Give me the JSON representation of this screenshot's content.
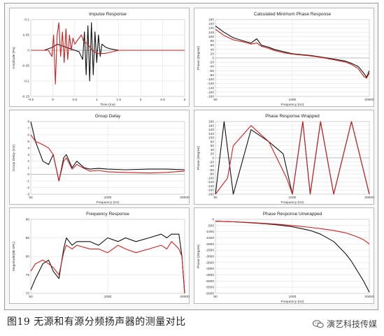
{
  "caption": "图19  无源和有源分频扬声器的测量对比",
  "brand": "演艺科技传媒",
  "colors": {
    "black_series": "#111111",
    "red_series": "#cc2222",
    "grid": "#d4d4d4",
    "frame": "#9a9a9a"
  },
  "chart_data": [
    {
      "type": "line",
      "title": "Impulse Response",
      "xlabel": "Time (ms)",
      "ylabel": "Amplitude (Pa)",
      "xscale": "linear",
      "xlim": [
        -0.5,
        3
      ],
      "ylim": [
        -0.15,
        0.1
      ],
      "xticks": [
        -0.5,
        0,
        0.5,
        1,
        1.5,
        2,
        2.5,
        3
      ],
      "xticklabels": [
        "-0.5",
        "0",
        "0.5",
        "1",
        "1.5",
        "2",
        "2.5",
        "3"
      ],
      "yticks": [
        -0.15,
        -0.1,
        -0.05,
        0,
        0.05,
        0.1
      ],
      "yticklabels": [
        "-0.15",
        "-0.1",
        "-0.05",
        "0",
        "0.05",
        "0.1"
      ],
      "grid": true,
      "series": [
        {
          "color": "#111111",
          "x": [
            -0.5,
            -0.2,
            0,
            0.1,
            0.2,
            0.3,
            0.4,
            0.5,
            0.6,
            0.68,
            0.72,
            0.76,
            0.8,
            0.84,
            0.88,
            0.92,
            0.96,
            1.0,
            1.04,
            1.08,
            1.12,
            1.2,
            1.3,
            1.5,
            1.8,
            2.2,
            3
          ],
          "y": [
            0,
            0,
            0.01,
            0.02,
            0.015,
            0.01,
            0.005,
            0,
            -0.005,
            -0.03,
            0.06,
            -0.08,
            0.08,
            -0.1,
            0.09,
            -0.08,
            0.06,
            -0.04,
            0.05,
            -0.02,
            0.02,
            0.01,
            0.005,
            0,
            0,
            0,
            0
          ]
        },
        {
          "color": "#cc2222",
          "x": [
            -0.5,
            -0.1,
            -0.02,
            0.02,
            0.06,
            0.1,
            0.14,
            0.18,
            0.22,
            0.26,
            0.3,
            0.34,
            0.38,
            0.42,
            0.46,
            0.5,
            0.55,
            0.6,
            0.65,
            0.7,
            0.8,
            0.9,
            1.0,
            1.2,
            1.5,
            2,
            3
          ],
          "y": [
            0,
            0,
            -0.02,
            0.05,
            -0.11,
            0.05,
            0.09,
            -0.02,
            0.06,
            -0.04,
            0.07,
            -0.03,
            0.05,
            0.0,
            0.04,
            0.02,
            0.03,
            0.04,
            0.05,
            0.03,
            0.02,
            0.0,
            -0.01,
            -0.01,
            0,
            0,
            0
          ]
        }
      ]
    },
    {
      "type": "line",
      "title": "Calculated Minimum Phase Response",
      "xlabel": "Frequency (Hz)",
      "ylabel": "Phase (Degree)",
      "xscale": "log",
      "xlim": [
        50,
        20000
      ],
      "ylim": [
        -180,
        180
      ],
      "xticks": [
        50,
        1000,
        20000
      ],
      "xticklabels": [
        "50",
        "1000",
        "20000"
      ],
      "yticks": [
        -180,
        -160,
        -140,
        -120,
        -100,
        -80,
        -60,
        -40,
        -20,
        0,
        20,
        40,
        60,
        80,
        100,
        120,
        140,
        160,
        180
      ],
      "yticklabels": [
        "-180",
        "-160",
        "-140",
        "-120",
        "-100",
        "-80",
        "-60",
        "-40",
        "-20",
        "0",
        "20",
        "40",
        "60",
        "80",
        "100",
        "120",
        "140",
        "160",
        "180"
      ],
      "grid": true,
      "series": [
        {
          "color": "#111111",
          "x": [
            50,
            70,
            100,
            150,
            200,
            250,
            300,
            400,
            500,
            700,
            1000,
            1500,
            2000,
            3000,
            5000,
            8000,
            10000,
            13000,
            16000,
            18000,
            20000
          ],
          "y": [
            150,
            120,
            95,
            80,
            70,
            90,
            60,
            50,
            40,
            30,
            20,
            15,
            12,
            5,
            -5,
            -15,
            -25,
            -40,
            -70,
            -90,
            -60
          ]
        },
        {
          "color": "#cc2222",
          "x": [
            50,
            70,
            100,
            150,
            200,
            250,
            300,
            400,
            500,
            700,
            1000,
            1500,
            2000,
            3000,
            5000,
            8000,
            10000,
            13000,
            16000,
            18000,
            20000
          ],
          "y": [
            135,
            105,
            85,
            75,
            65,
            70,
            55,
            45,
            35,
            25,
            18,
            13,
            10,
            3,
            -8,
            -20,
            -30,
            -50,
            -85,
            -95,
            -70
          ]
        }
      ]
    },
    {
      "type": "line",
      "title": "Group Delay",
      "xlabel": "Frequency (Hz)",
      "ylabel": "Group Delay (ms)",
      "xscale": "log",
      "xlim": [
        50,
        20000
      ],
      "ylim": [
        -3,
        8
      ],
      "xticks": [
        50,
        1000,
        20000
      ],
      "xticklabels": [
        "50",
        "1000",
        "20000"
      ],
      "yticks": [
        -3,
        -2,
        -1,
        0,
        1,
        2,
        3,
        4,
        5,
        6,
        7,
        8
      ],
      "yticklabels": [
        "-3",
        "-2",
        "-1",
        "0",
        "1",
        "2",
        "3",
        "4",
        "5",
        "6",
        "7",
        "8"
      ],
      "grid": true,
      "series": [
        {
          "color": "#111111",
          "x": [
            50,
            60,
            80,
            100,
            120,
            150,
            180,
            200,
            250,
            300,
            400,
            500,
            700,
            1000,
            2000,
            5000,
            10000,
            20000
          ],
          "y": [
            8,
            5,
            2,
            1.5,
            3,
            -1,
            2.5,
            3,
            1,
            2,
            1,
            0.8,
            0.9,
            0.8,
            0.7,
            0.8,
            0.8,
            0.7
          ]
        },
        {
          "color": "#cc2222",
          "x": [
            50,
            60,
            80,
            100,
            120,
            150,
            180,
            200,
            250,
            300,
            400,
            500,
            700,
            1000,
            2000,
            5000,
            10000,
            20000
          ],
          "y": [
            6,
            5,
            4.5,
            4,
            3,
            -1,
            2,
            2.5,
            0.8,
            1.5,
            0.9,
            0.5,
            0.6,
            0.4,
            0.3,
            0.2,
            0.3,
            0.5
          ]
        }
      ]
    },
    {
      "type": "line",
      "title": "Phase Response Wrapped",
      "xlabel": "Frequency (Hz)",
      "ylabel": "Phase (Degree)",
      "xscale": "log",
      "xlim": [
        50,
        20000
      ],
      "ylim": [
        -180,
        180
      ],
      "xticks": [
        50,
        1000,
        20000
      ],
      "xticklabels": [
        "50",
        "1000",
        "20000"
      ],
      "yticks": [
        -180,
        -160,
        -140,
        -120,
        -100,
        -80,
        -60,
        -40,
        -20,
        0,
        20,
        40,
        60,
        80,
        100,
        120,
        140,
        160,
        180
      ],
      "yticklabels": [
        "-180",
        "-160",
        "-140",
        "-120",
        "-100",
        "-80",
        "-60",
        "-40",
        "-20",
        "0",
        "20",
        "40",
        "60",
        "80",
        "100",
        "120",
        "140",
        "160",
        "180"
      ],
      "grid": true,
      "series": [
        {
          "color": "#111111",
          "wraps": "sawtooth",
          "x": [
            50,
            70,
            100,
            200,
            400,
            700,
            1000,
            1500,
            2000,
            3000,
            5000,
            10000,
            20000
          ],
          "y": [
            -180,
            180,
            -180,
            140,
            80,
            20,
            -180,
            180,
            -180,
            180,
            -180,
            180,
            -180
          ]
        },
        {
          "color": "#cc2222",
          "wraps": "sawtooth",
          "x": [
            50,
            80,
            100,
            200,
            400,
            800,
            1000,
            1500,
            2000,
            3000,
            5000,
            10000,
            20000
          ],
          "y": [
            -180,
            -100,
            60,
            160,
            80,
            -100,
            -180,
            180,
            -180,
            180,
            -180,
            180,
            -180
          ]
        }
      ]
    },
    {
      "type": "line",
      "title": "Frequency Response",
      "xlabel": "",
      "ylabel": "Magnitude(dB SPL)",
      "xscale": "log",
      "xlim": [
        50,
        20000
      ],
      "ylim": [
        70,
        90
      ],
      "xticks": [
        50,
        1000,
        20000
      ],
      "xticklabels": [
        "50",
        "1000",
        "20000"
      ],
      "yticks": [
        70,
        75,
        80,
        85,
        90
      ],
      "yticklabels": [
        "70",
        "75",
        "80",
        "85",
        "90"
      ],
      "grid": true,
      "series": [
        {
          "color": "#111111",
          "x": [
            50,
            60,
            80,
            100,
            120,
            150,
            180,
            200,
            250,
            300,
            500,
            700,
            1000,
            1500,
            2000,
            3000,
            5000,
            8000,
            10000,
            12000,
            14000,
            16000,
            18000,
            20000
          ],
          "y": [
            71,
            74,
            78,
            79,
            76,
            74,
            82,
            85,
            83,
            84,
            84,
            83,
            85,
            84,
            85,
            84,
            85,
            86,
            85,
            86,
            86,
            86,
            80,
            70
          ]
        },
        {
          "color": "#cc2222",
          "x": [
            50,
            60,
            80,
            100,
            120,
            150,
            180,
            200,
            250,
            300,
            500,
            700,
            1000,
            1500,
            2000,
            3000,
            5000,
            8000,
            10000,
            12000,
            14000,
            16000,
            18000,
            20000
          ],
          "y": [
            76,
            78,
            79,
            78,
            77,
            75,
            81,
            83,
            82,
            83,
            82,
            82,
            81,
            83,
            82,
            81,
            82,
            83,
            82,
            84,
            83,
            82,
            80,
            70
          ]
        }
      ]
    },
    {
      "type": "line",
      "title": "Phase Response Unwrapped",
      "xlabel": "Frequency (Hz)",
      "ylabel": "Phase (Degree)",
      "xscale": "log",
      "xlim": [
        50,
        20000
      ],
      "ylim": [
        -6000,
        0
      ],
      "xticks": [
        50,
        1000,
        20000
      ],
      "xticklabels": [
        "50",
        "1000",
        "20000"
      ],
      "yticks": [
        -6000,
        -5500,
        -5000,
        -4500,
        -4000,
        -3500,
        -3000,
        -2500,
        -2000,
        -1500,
        -1000,
        -500,
        0
      ],
      "yticklabels": [
        "-6000",
        "-5500",
        "-5000",
        "-4500",
        "-4000",
        "-3500",
        "-3000",
        "-2500",
        "-2000",
        "-1500",
        "-1000",
        "-500",
        "0"
      ],
      "grid": true,
      "series": [
        {
          "color": "#111111",
          "x": [
            50,
            100,
            200,
            500,
            1000,
            2000,
            3000,
            5000,
            8000,
            10000,
            13000,
            16000,
            20000
          ],
          "y": [
            -150,
            -200,
            -280,
            -420,
            -600,
            -900,
            -1200,
            -1800,
            -2800,
            -3400,
            -4300,
            -5000,
            -5900
          ]
        },
        {
          "color": "#cc2222",
          "x": [
            50,
            100,
            200,
            500,
            1000,
            2000,
            3000,
            5000,
            8000,
            10000,
            13000,
            16000,
            20000
          ],
          "y": [
            -150,
            -190,
            -260,
            -380,
            -500,
            -650,
            -750,
            -900,
            -1100,
            -1250,
            -1450,
            -1650,
            -2000
          ]
        }
      ]
    }
  ]
}
